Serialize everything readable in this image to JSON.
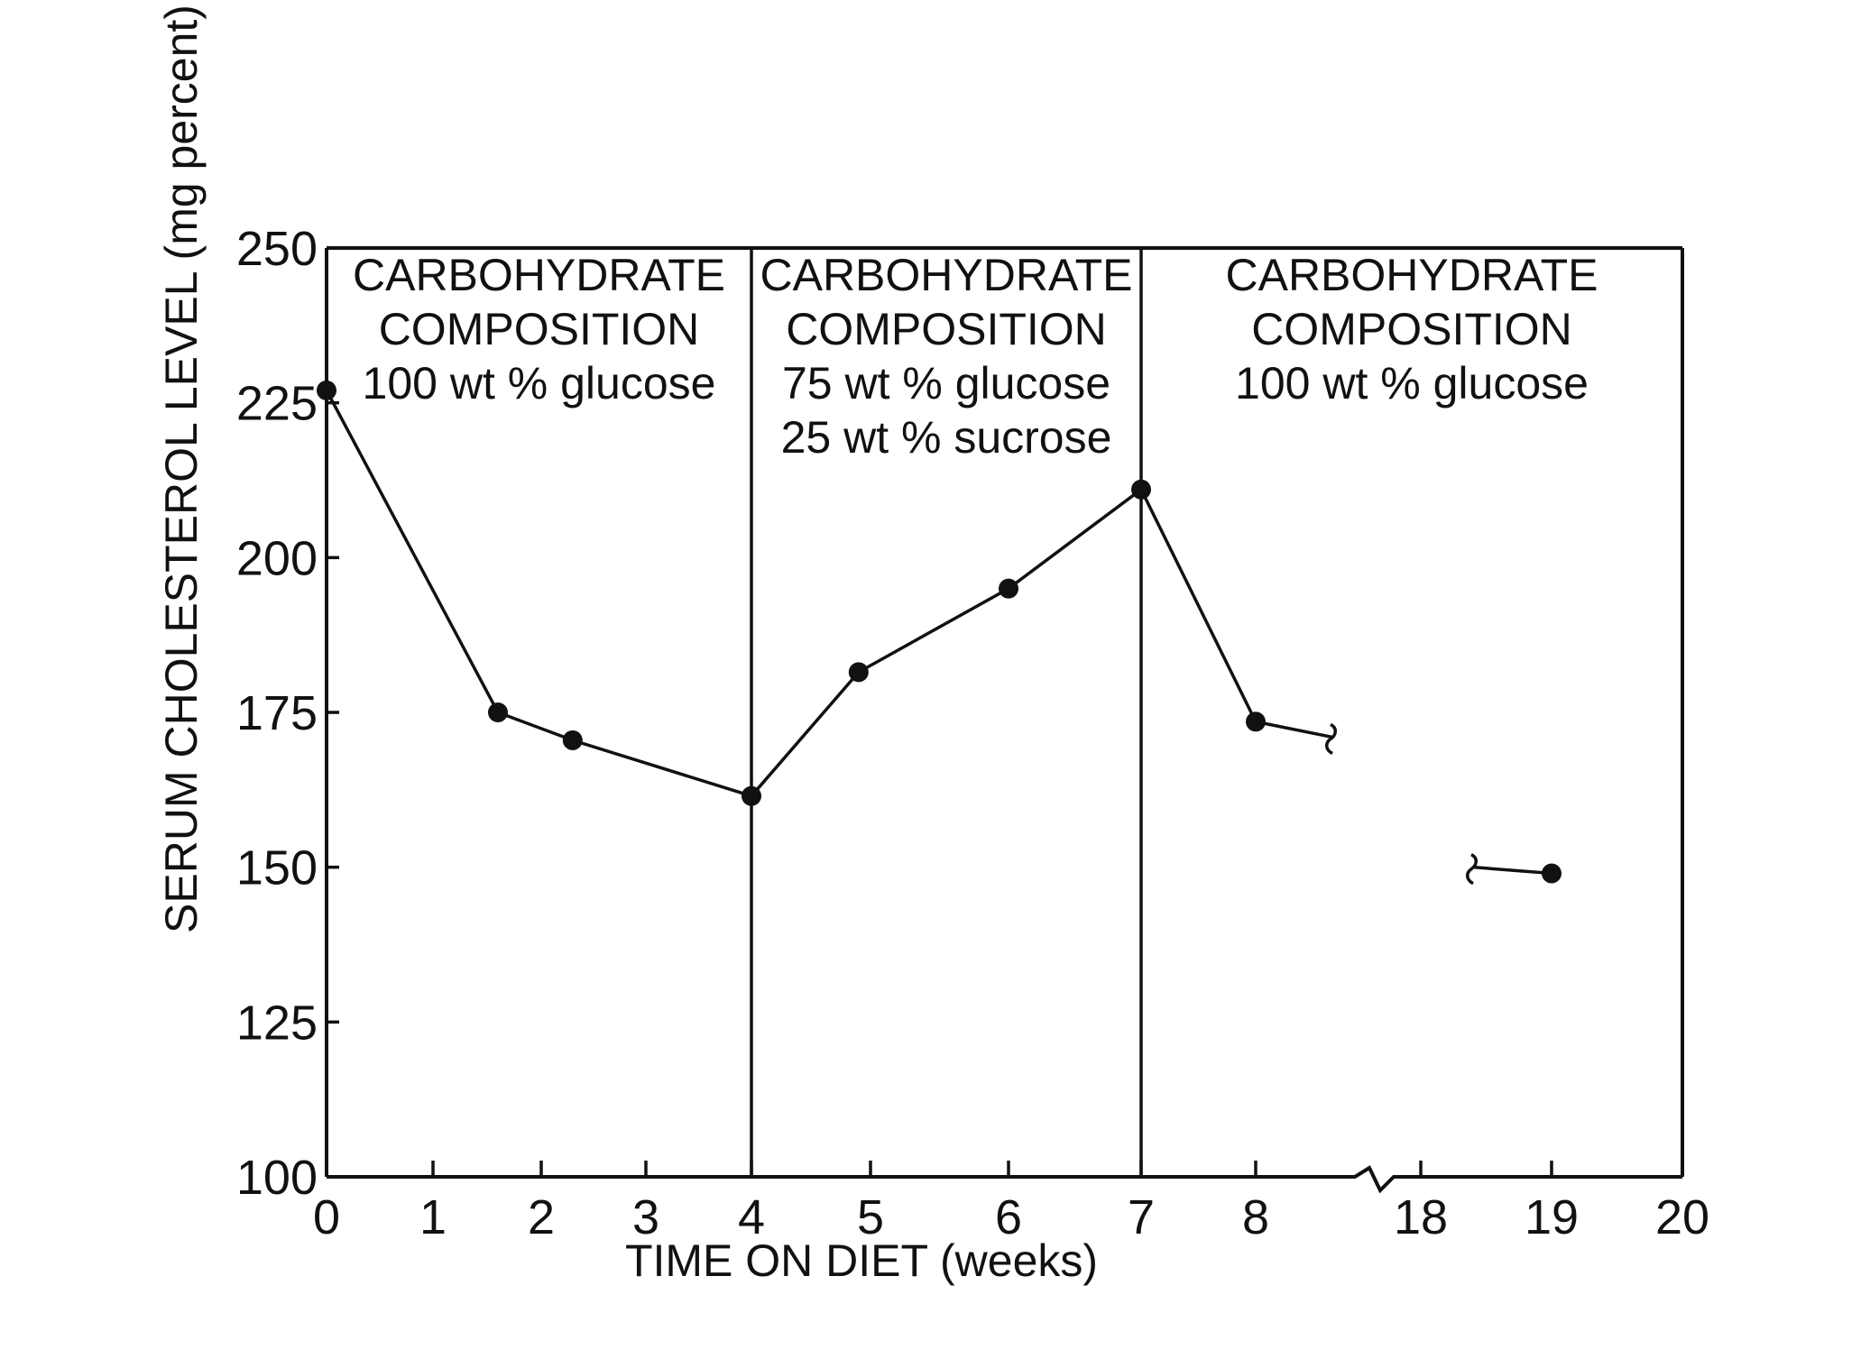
{
  "chart_data": {
    "type": "line",
    "title": "",
    "xlabel": "TIME ON DIET (weeks)",
    "ylabel": "SERUM CHOLESTEROL LEVEL (mg percent)",
    "ylim": [
      100,
      250
    ],
    "yticks": [
      "100",
      "125",
      "150",
      "175",
      "200",
      "225",
      "250"
    ],
    "xticks": [
      "0",
      "1",
      "2",
      "3",
      "4",
      "5",
      "6",
      "7",
      "8",
      "18",
      "19",
      "20"
    ],
    "x_axis_break": "between 8 and 18",
    "grid": false,
    "series": [
      {
        "segments": [
          [
            {
              "x": 0,
              "y": 227
            },
            {
              "x": 1.6,
              "y": 175
            },
            {
              "x": 2.3,
              "y": 170.5
            },
            {
              "x": 4,
              "y": 161.5
            },
            {
              "x": 4.9,
              "y": 181.5
            },
            {
              "x": 6,
              "y": 195
            },
            {
              "x": 7,
              "y": 211
            },
            {
              "x": 8,
              "y": 173.5
            },
            {
              "x": 8.6,
              "y": 171,
              "marker": false
            }
          ],
          [
            {
              "x": 18.4,
              "y": 150,
              "marker": false
            },
            {
              "x": 19,
              "y": 149
            }
          ]
        ]
      }
    ],
    "regions": [
      {
        "x_start": 0,
        "x_end": 4,
        "lines": [
          "CARBOHYDRATE",
          "COMPOSITION",
          "100 wt % glucose"
        ]
      },
      {
        "x_start": 4,
        "x_end": 7,
        "lines": [
          "CARBOHYDRATE",
          "COMPOSITION",
          "75 wt % glucose",
          "25 wt % sucrose"
        ]
      },
      {
        "x_start": 7,
        "x_end": 20,
        "lines": [
          "CARBOHYDRATE",
          "COMPOSITION",
          "100 wt % glucose"
        ]
      }
    ]
  }
}
